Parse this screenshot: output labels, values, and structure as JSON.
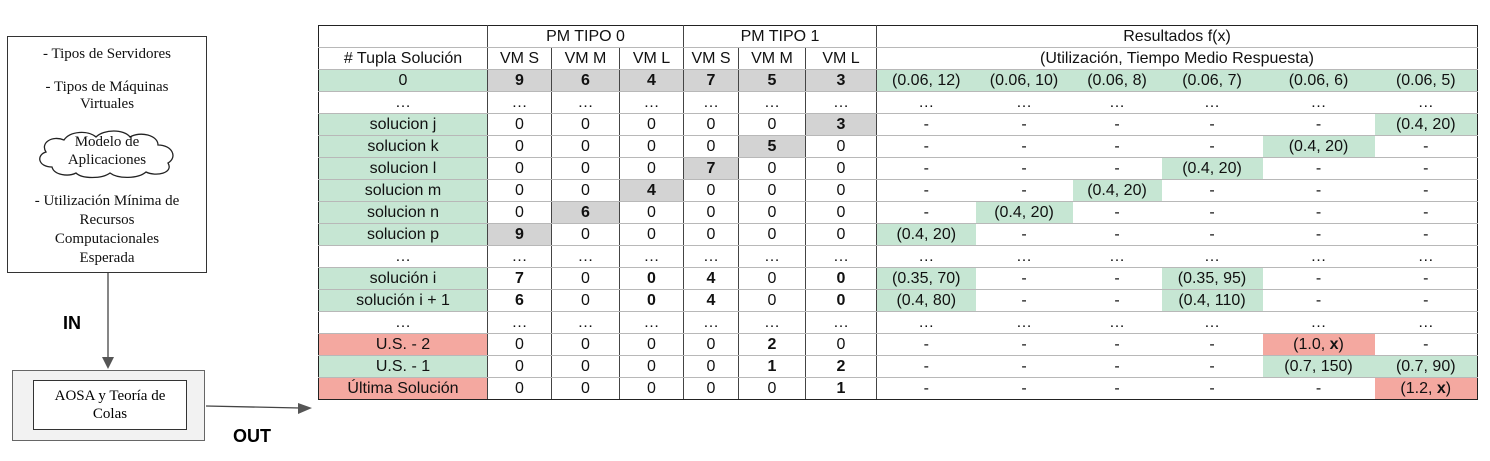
{
  "input_box": {
    "line1": "- Tipos de Servidores",
    "line2": "- Tipos de Máquinas",
    "line3": "Virtuales",
    "cloud_line1": "Modelo de",
    "cloud_line2": "Aplicaciones",
    "line4": "- Utilización Mínima de",
    "line5": "Recursos",
    "line6": "Computacionales",
    "line7": "Esperada"
  },
  "in_label": "IN",
  "out_label": "OUT",
  "process_box": {
    "line1": "AOSA y Teoría de",
    "line2": "Colas"
  },
  "colors": {
    "green": "#c6e6d3",
    "red": "#f4a8a0",
    "gray": "#d3d3d3"
  },
  "table": {
    "header1": {
      "pm0": "PM TIPO 0",
      "pm1": "PM TIPO 1",
      "results": "Resultados f(x)"
    },
    "header2": {
      "tuple": "# Tupla Solución",
      "vm": [
        "VM S",
        "VM M",
        "VM L",
        "VM S",
        "VM M",
        "VM L"
      ],
      "results_sub": "(Utilización, Tiempo Medio Respuesta)"
    },
    "rows": [
      {
        "label": "0",
        "vm": [
          "9",
          "6",
          "4",
          "7",
          "5",
          "3"
        ],
        "res": [
          "(0.06, 12)",
          "(0.06, 10)",
          "(0.06, 8)",
          "(0.06, 7)",
          "(0.06, 6)",
          "(0.06, 5)"
        ]
      },
      {
        "label": "…",
        "vm": [
          "…",
          "…",
          "…",
          "…",
          "…",
          "…"
        ],
        "res": [
          "…",
          "…",
          "…",
          "…",
          "…",
          "…"
        ]
      },
      {
        "label": "solucion j",
        "vm": [
          "0",
          "0",
          "0",
          "0",
          "0",
          "3"
        ],
        "res": [
          "-",
          "-",
          "-",
          "-",
          "-",
          "(0.4, 20)"
        ]
      },
      {
        "label": "solucion k",
        "vm": [
          "0",
          "0",
          "0",
          "0",
          "5",
          "0"
        ],
        "res": [
          "-",
          "-",
          "-",
          "-",
          "(0.4, 20)",
          "-"
        ]
      },
      {
        "label": "solucion l",
        "vm": [
          "0",
          "0",
          "0",
          "7",
          "0",
          "0"
        ],
        "res": [
          "-",
          "-",
          "-",
          "(0.4, 20)",
          "-",
          "-"
        ]
      },
      {
        "label": "solucion m",
        "vm": [
          "0",
          "0",
          "4",
          "0",
          "0",
          "0"
        ],
        "res": [
          "-",
          "-",
          "(0.4, 20)",
          "-",
          "-",
          "-"
        ]
      },
      {
        "label": "solucion n",
        "vm": [
          "0",
          "6",
          "0",
          "0",
          "0",
          "0"
        ],
        "res": [
          "-",
          "(0.4, 20)",
          "-",
          "-",
          "-",
          "-"
        ]
      },
      {
        "label": "solucion p",
        "vm": [
          "9",
          "0",
          "0",
          "0",
          "0",
          "0"
        ],
        "res": [
          "(0.4, 20)",
          "-",
          "-",
          "-",
          "-",
          "-"
        ]
      },
      {
        "label": "…",
        "vm": [
          "…",
          "…",
          "…",
          "…",
          "…",
          "…"
        ],
        "res": [
          "…",
          "…",
          "…",
          "…",
          "…",
          "…"
        ]
      },
      {
        "label": "solución i",
        "vm": [
          "7",
          "0",
          "0",
          "4",
          "0",
          "0"
        ],
        "res": [
          "(0.35, 70)",
          "-",
          "-",
          "(0.35, 95)",
          "-",
          "-"
        ]
      },
      {
        "label": "solución i + 1",
        "vm": [
          "6",
          "0",
          "0",
          "4",
          "0",
          "0"
        ],
        "res": [
          "(0.4, 80)",
          "-",
          "-",
          "(0.4, 110)",
          "-",
          "-"
        ]
      },
      {
        "label": "…",
        "vm": [
          "…",
          "…",
          "…",
          "…",
          "…",
          "…"
        ],
        "res": [
          "…",
          "…",
          "…",
          "…",
          "…",
          "…"
        ]
      },
      {
        "label": "U.S. - 2",
        "vm": [
          "0",
          "0",
          "0",
          "0",
          "2",
          "0"
        ],
        "res": [
          "-",
          "-",
          "-",
          "-",
          "(1.0, ",
          "-"
        ]
      },
      {
        "label": "U.S. - 1",
        "vm": [
          "0",
          "0",
          "0",
          "0",
          "1",
          "2"
        ],
        "res": [
          "-",
          "-",
          "-",
          "-",
          "(0.7, 150)",
          "(0.7, 90)"
        ]
      },
      {
        "label": "Última Solución",
        "vm": [
          "0",
          "0",
          "0",
          "0",
          "0",
          "1"
        ],
        "res": [
          "-",
          "-",
          "-",
          "-",
          "-",
          "(1.2, "
        ]
      }
    ],
    "x_symbol": "x",
    "close_paren": ")"
  }
}
